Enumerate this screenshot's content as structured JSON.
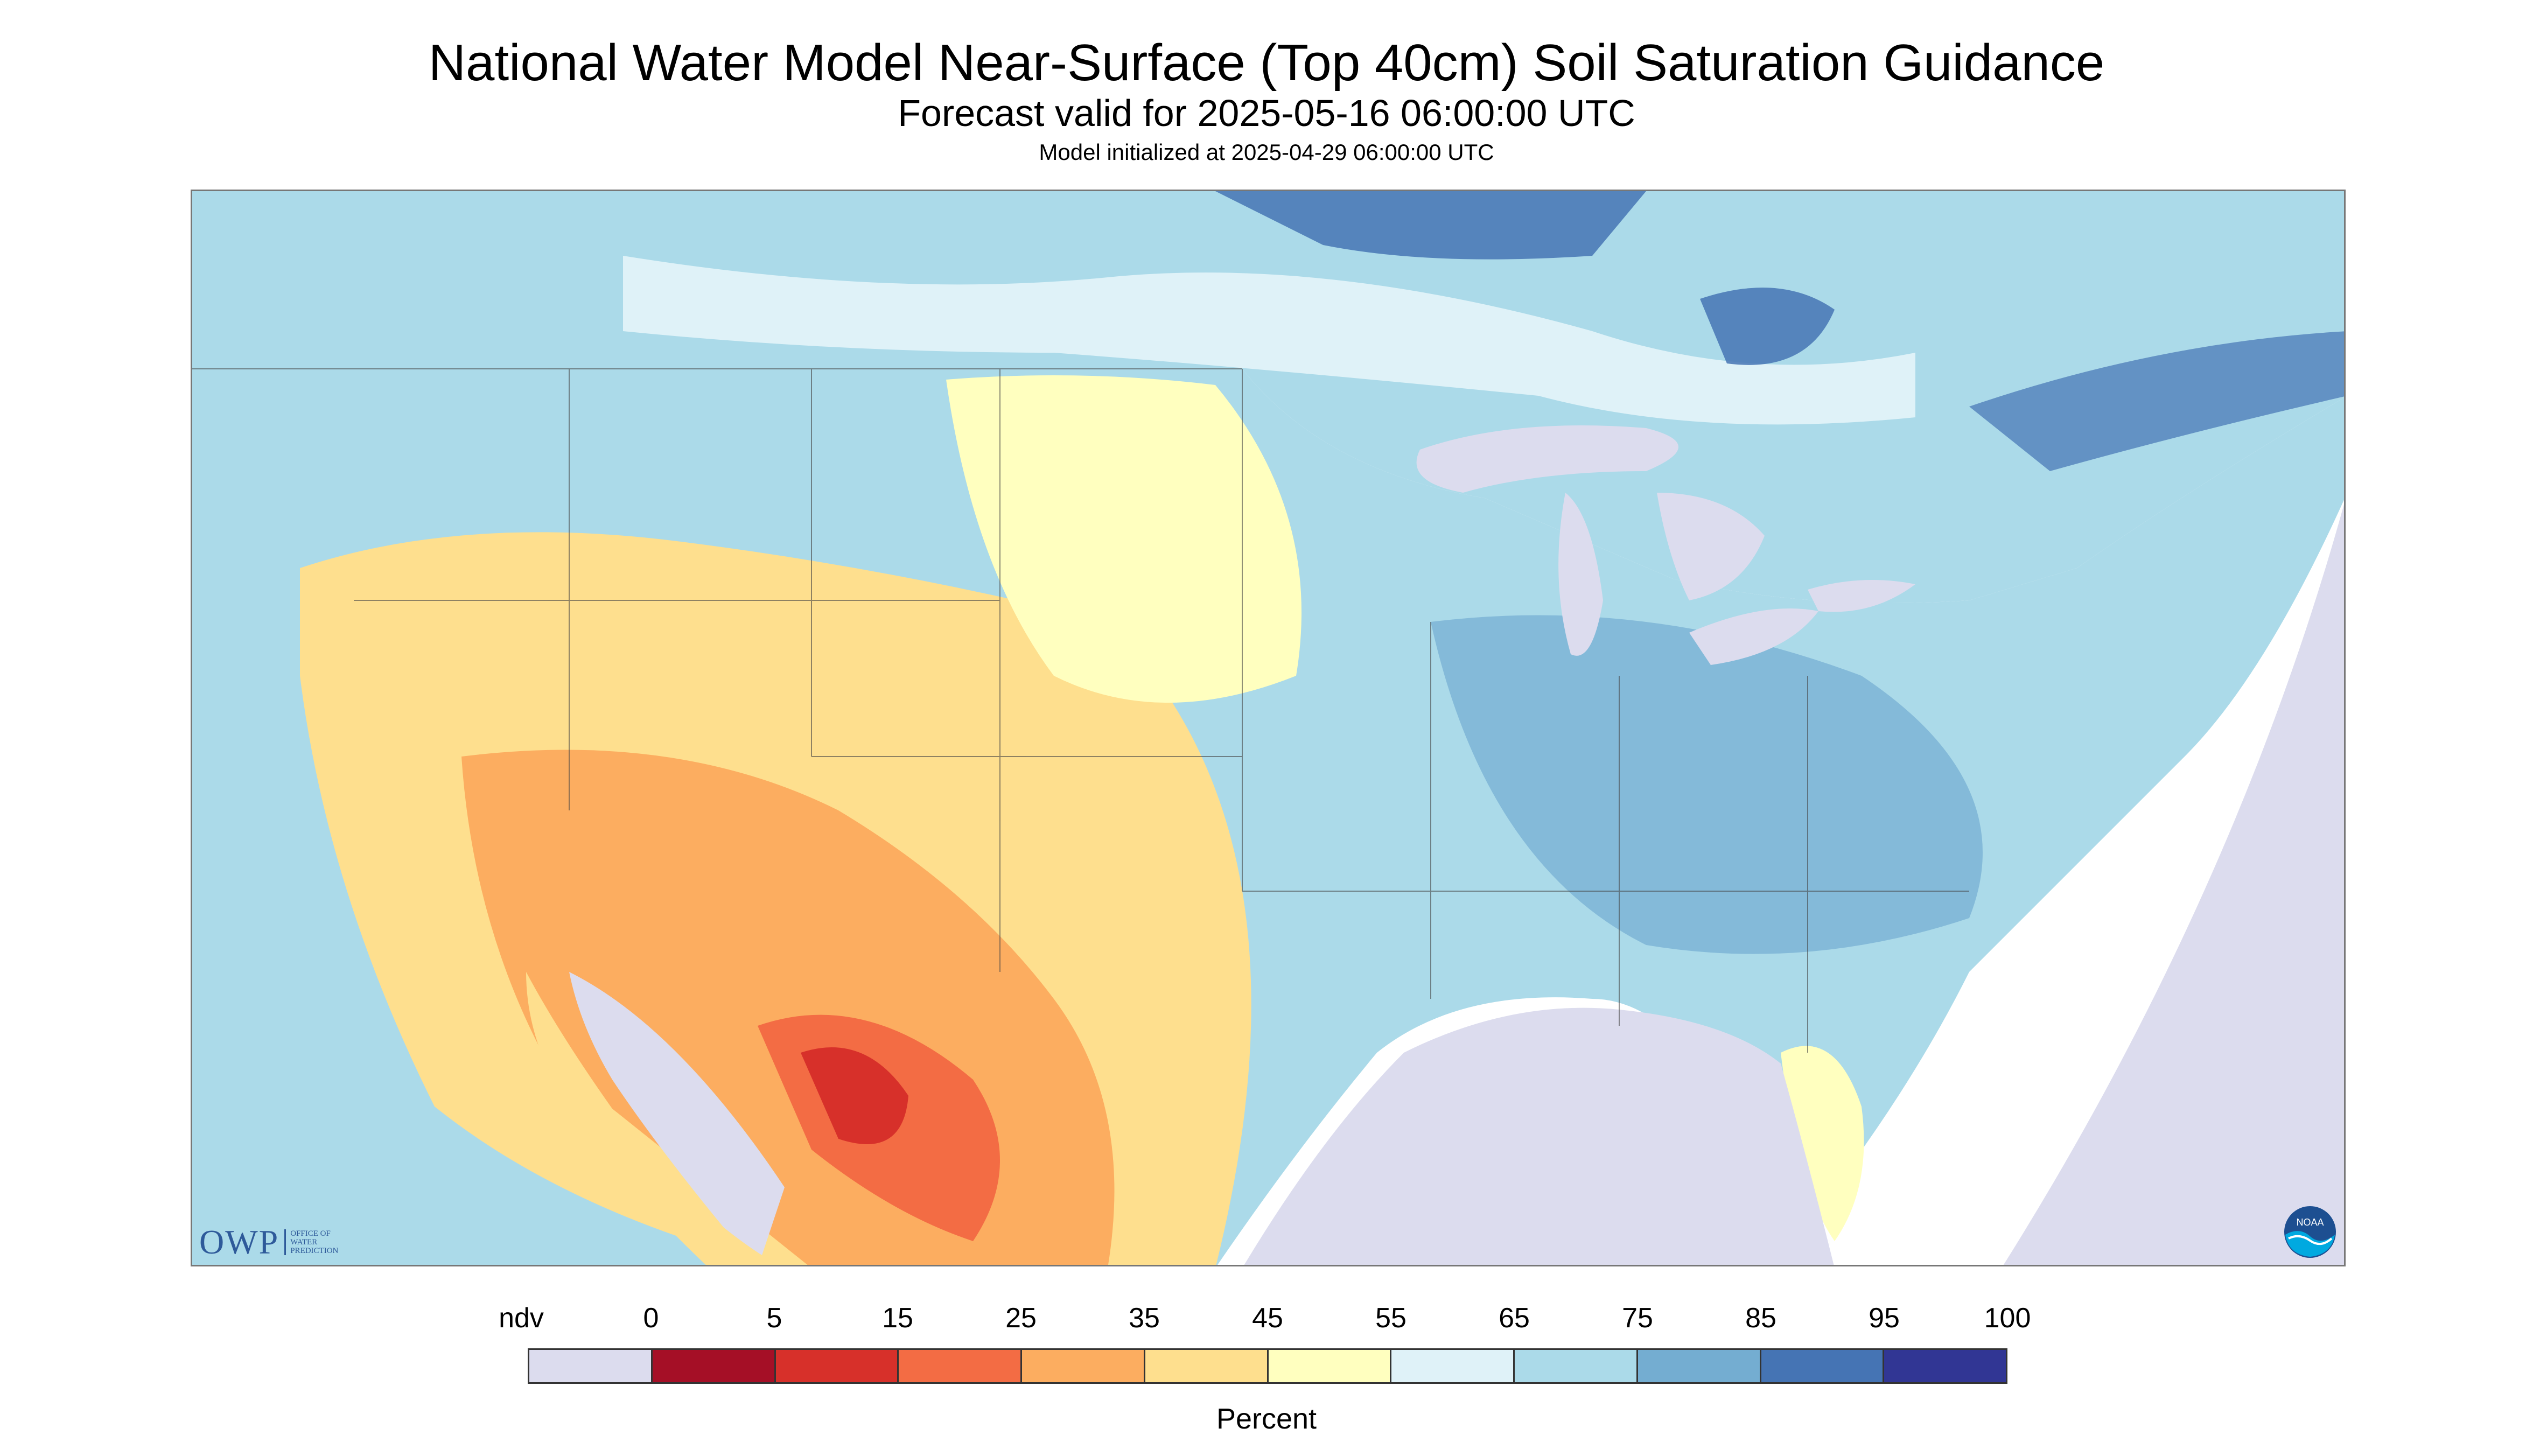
{
  "title": "National Water Model Near-Surface (Top 40cm) Soil Saturation Guidance",
  "subtitle": "Forecast valid for 2025-05-16 06:00:00 UTC",
  "init_text": "Model initialized at 2025-04-29 06:00:00 UTC",
  "logos": {
    "owp_text": "OWP",
    "owp_sub": [
      "OFFICE OF",
      "WATER",
      "PREDICTION"
    ],
    "noaa_text": "NOAA"
  },
  "legend": {
    "unit": "Percent",
    "labels": [
      "ndv",
      "0",
      "5",
      "15",
      "25",
      "35",
      "45",
      "55",
      "65",
      "75",
      "85",
      "95",
      "100"
    ],
    "colors": [
      "#dcdcee",
      "#a50f26",
      "#d7302a",
      "#f36c44",
      "#fcad60",
      "#fedf8e",
      "#ffffbf",
      "#dff2f8",
      "#abdae9",
      "#74add1",
      "#4574b4",
      "#313694"
    ]
  },
  "map": {
    "nodata_color": "#dcdcee",
    "water_color": "#dcdcee",
    "background_color": "#ffffff"
  }
}
